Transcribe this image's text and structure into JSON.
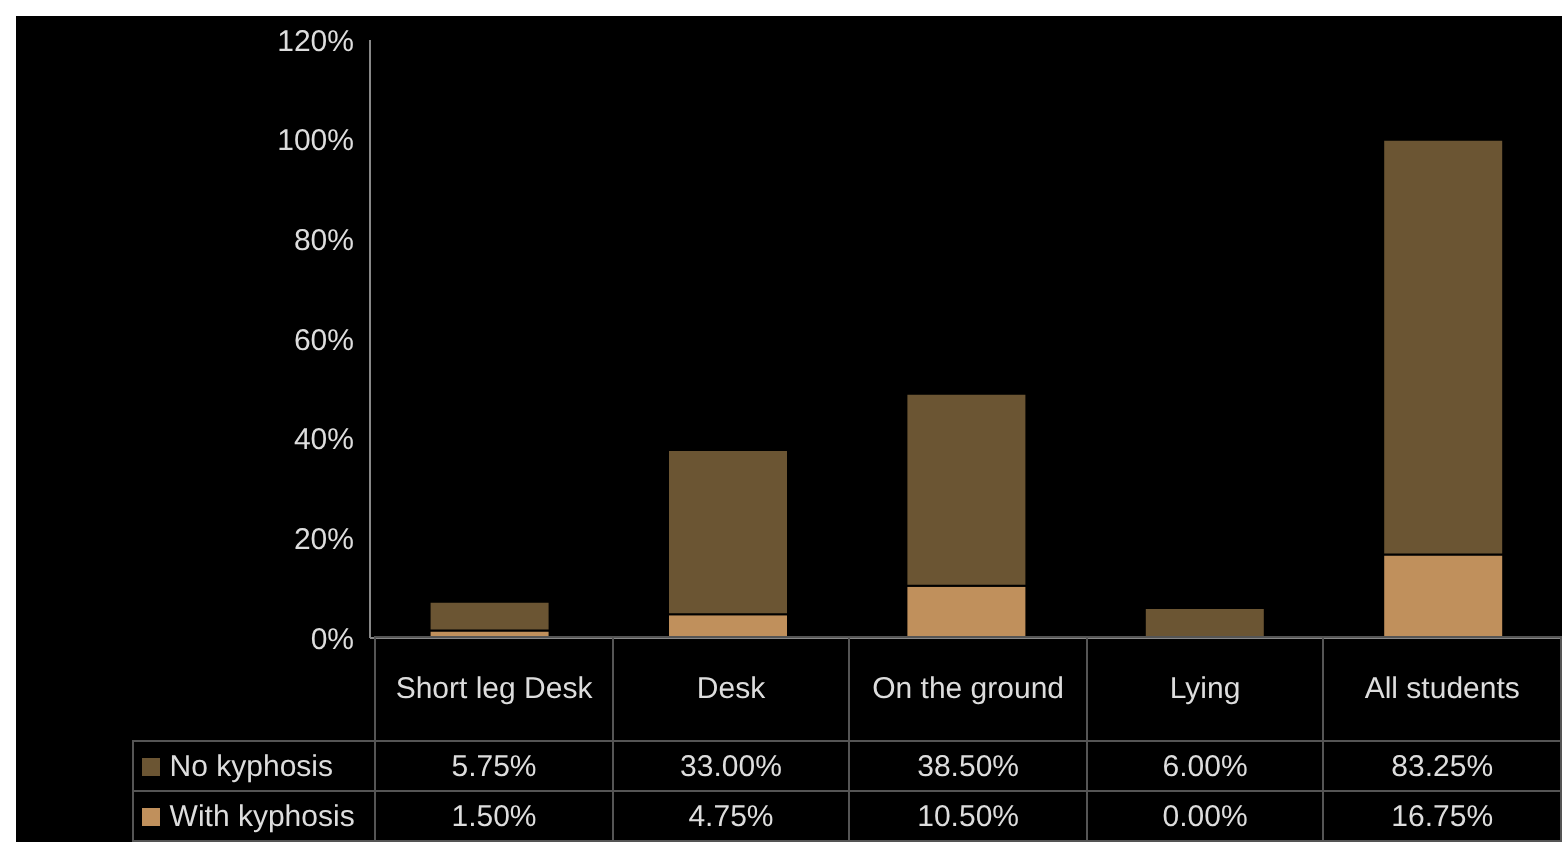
{
  "chart_data": {
    "type": "bar",
    "stacked": true,
    "categories": [
      "Short leg Desk",
      "Desk",
      "On the ground",
      "Lying",
      "All students"
    ],
    "series": [
      {
        "name": "With kyphosis",
        "color": "#c0905c",
        "values": [
          1.5,
          4.75,
          10.5,
          0,
          16.75
        ],
        "value_labels": [
          "1.50%",
          "4.75%",
          "10.50%",
          "0.00%",
          "16.75%"
        ]
      },
      {
        "name": "No kyphosis",
        "color": "#6b5533",
        "values": [
          5.75,
          33,
          38.5,
          6,
          83.25
        ],
        "value_labels": [
          "5.75%",
          "33.00%",
          "38.50%",
          "6.00%",
          "83.25%"
        ]
      }
    ],
    "ylim": [
      0,
      120
    ],
    "yticks": [
      {
        "value": 0,
        "label": "0%"
      },
      {
        "value": 20,
        "label": "20%"
      },
      {
        "value": 40,
        "label": "40%"
      },
      {
        "value": 60,
        "label": "60%"
      },
      {
        "value": 80,
        "label": "80%"
      },
      {
        "value": 100,
        "label": "100%"
      },
      {
        "value": 120,
        "label": "120%"
      }
    ],
    "grid": false,
    "legend": "bottom"
  }
}
